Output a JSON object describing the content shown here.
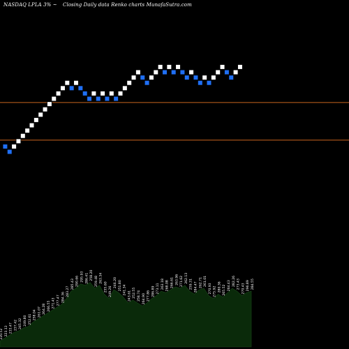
{
  "header": {
    "symbol": "NASDAQ LPLA 3% ~",
    "subtitle": "Closing Daily data  Renko  charts MunafaSutra.com"
  },
  "colors": {
    "background": "#000000",
    "brick_up": "#ffffff",
    "brick_down": "#1f6ff5",
    "brick_border": "#000000",
    "level_line": "#c8641e",
    "volume_fill": "#0a2a0a",
    "volume_label": "#ffffff"
  },
  "chart_data": {
    "type": "renko",
    "bricks": [
      {
        "dir": "down",
        "level": 9
      },
      {
        "dir": "down",
        "level": 8
      },
      {
        "dir": "up",
        "level": 9
      },
      {
        "dir": "up",
        "level": 10
      },
      {
        "dir": "up",
        "level": 11
      },
      {
        "dir": "up",
        "level": 12
      },
      {
        "dir": "up",
        "level": 13
      },
      {
        "dir": "up",
        "level": 14
      },
      {
        "dir": "up",
        "level": 15
      },
      {
        "dir": "up",
        "level": 16
      },
      {
        "dir": "up",
        "level": 17
      },
      {
        "dir": "up",
        "level": 18
      },
      {
        "dir": "up",
        "level": 19
      },
      {
        "dir": "up",
        "level": 20
      },
      {
        "dir": "up",
        "level": 21
      },
      {
        "dir": "down",
        "level": 20
      },
      {
        "dir": "up",
        "level": 21
      },
      {
        "dir": "down",
        "level": 20
      },
      {
        "dir": "down",
        "level": 19
      },
      {
        "dir": "down",
        "level": 18
      },
      {
        "dir": "up",
        "level": 19
      },
      {
        "dir": "down",
        "level": 18
      },
      {
        "dir": "up",
        "level": 19
      },
      {
        "dir": "down",
        "level": 18
      },
      {
        "dir": "up",
        "level": 19
      },
      {
        "dir": "down",
        "level": 18
      },
      {
        "dir": "up",
        "level": 19
      },
      {
        "dir": "up",
        "level": 20
      },
      {
        "dir": "up",
        "level": 21
      },
      {
        "dir": "up",
        "level": 22
      },
      {
        "dir": "up",
        "level": 23
      },
      {
        "dir": "down",
        "level": 22
      },
      {
        "dir": "down",
        "level": 21
      },
      {
        "dir": "up",
        "level": 22
      },
      {
        "dir": "up",
        "level": 23
      },
      {
        "dir": "up",
        "level": 24
      },
      {
        "dir": "down",
        "level": 23
      },
      {
        "dir": "up",
        "level": 24
      },
      {
        "dir": "down",
        "level": 23
      },
      {
        "dir": "up",
        "level": 24
      },
      {
        "dir": "down",
        "level": 23
      },
      {
        "dir": "down",
        "level": 22
      },
      {
        "dir": "up",
        "level": 23
      },
      {
        "dir": "down",
        "level": 22
      },
      {
        "dir": "down",
        "level": 21
      },
      {
        "dir": "up",
        "level": 22
      },
      {
        "dir": "down",
        "level": 21
      },
      {
        "dir": "up",
        "level": 22
      },
      {
        "dir": "up",
        "level": 23
      },
      {
        "dir": "up",
        "level": 24
      },
      {
        "dir": "down",
        "level": 23
      },
      {
        "dir": "down",
        "level": 22
      },
      {
        "dir": "up",
        "level": 23
      },
      {
        "dir": "up",
        "level": 24
      }
    ],
    "level_lines": [
      17.3,
      10.2
    ],
    "volume_values": [
      4,
      6,
      8,
      10,
      11,
      13,
      14,
      17,
      19,
      21,
      23,
      25,
      27,
      29,
      33,
      38,
      40,
      43,
      42,
      44,
      40,
      42,
      36,
      33,
      39,
      37,
      34,
      30,
      32,
      30,
      28,
      30,
      33,
      35,
      38,
      37,
      39,
      41,
      40,
      42,
      38,
      36,
      39,
      40,
      35,
      33,
      36,
      34,
      37,
      40,
      38,
      35,
      37,
      38
    ],
    "volume_labels": [
      "220.52",
      "223.13",
      "233.47",
      "237.42",
      "245.32",
      "249.80",
      "252.61",
      "258.04",
      "261.07",
      "264.28",
      "266.55",
      "271.43",
      "277.47",
      "284.36",
      "283.27",
      "285.43",
      "290.66",
      "295.93",
      "286.41",
      "258.20",
      "259.48",
      "263.34",
      "255.60",
      "249.26",
      "246.20",
      "251.80",
      "241.34",
      "243.61",
      "252.55",
      "258.74",
      "264.90",
      "277.86",
      "286.89",
      "273.11",
      "263.18",
      "268.08",
      "266.61",
      "263.96",
      "271.62",
      "262.13",
      "259.31",
      "284.47",
      "262.71",
      "261.01",
      "270.93",
      "275.92",
      "280.36",
      "265.52",
      "264.43",
      "282.26",
      "273.43",
      "270.43",
      "296.89",
      "284.55"
    ]
  }
}
